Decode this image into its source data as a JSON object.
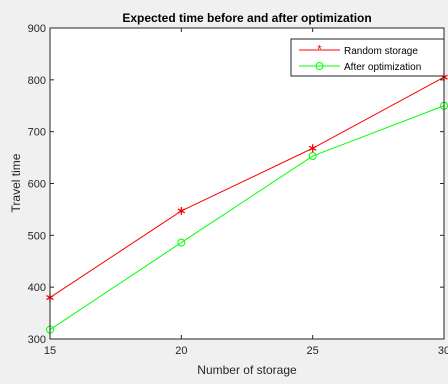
{
  "chart_data": {
    "type": "line",
    "title": "Expected time before and after optimization",
    "xlabel": "Number of storage",
    "ylabel": "Travel time",
    "x": [
      15,
      20,
      25,
      30
    ],
    "xlim": [
      15,
      30
    ],
    "ylim": [
      300,
      900
    ],
    "xticks": [
      "15",
      "20",
      "25",
      "30"
    ],
    "yticks": [
      "300",
      "400",
      "500",
      "600",
      "700",
      "800",
      "900"
    ],
    "grid": false,
    "legend_position": "top-right",
    "series": [
      {
        "name": "Random storage",
        "values": [
          380,
          547,
          668,
          805
        ],
        "color": "#ff0000",
        "marker": "asterisk"
      },
      {
        "name": "After optimization",
        "values": [
          318,
          486,
          653,
          750
        ],
        "color": "#00ff00",
        "marker": "circle"
      }
    ]
  }
}
